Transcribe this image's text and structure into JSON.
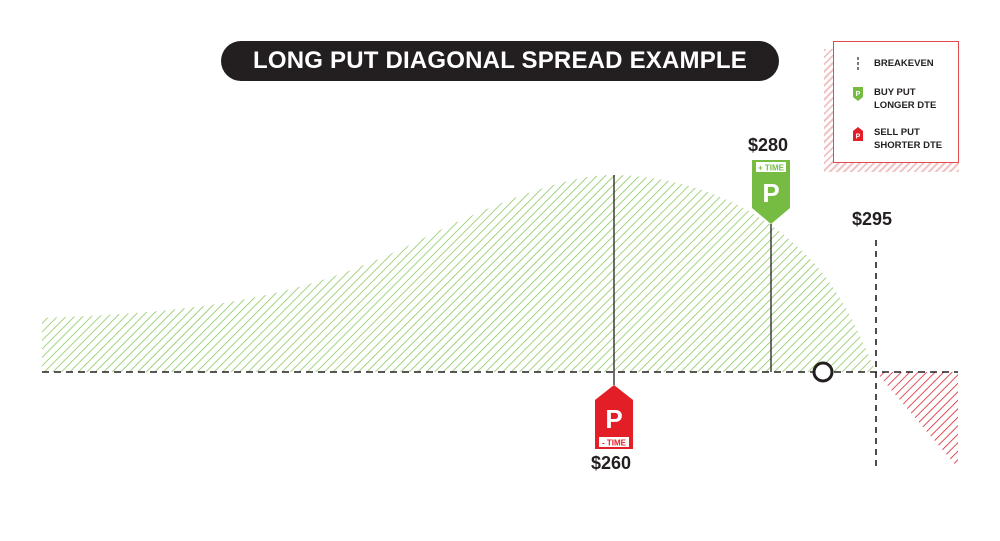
{
  "title": "LONG PUT DIAGONAL SPREAD EXAMPLE",
  "legend": {
    "items": [
      {
        "icon": "breakeven-dashed-line-icon",
        "label": "BREAKEVEN"
      },
      {
        "icon": "green-put-tag-icon",
        "label": "BUY PUT\nLONGER DTE"
      },
      {
        "icon": "red-put-tag-icon",
        "label": "SELL PUT\nSHORTER DTE"
      }
    ]
  },
  "prices": {
    "short_strike": "$260",
    "long_strike": "$280",
    "breakeven": "$295"
  },
  "tags": {
    "long_letter": "P",
    "long_note": "+ TIME",
    "short_letter": "P",
    "short_note": "- TIME"
  },
  "colors": {
    "profit": "#8cc863",
    "loss": "#d8262e",
    "long_tag": "#76bc43",
    "short_tag": "#e31e26",
    "text": "#231f20"
  }
}
